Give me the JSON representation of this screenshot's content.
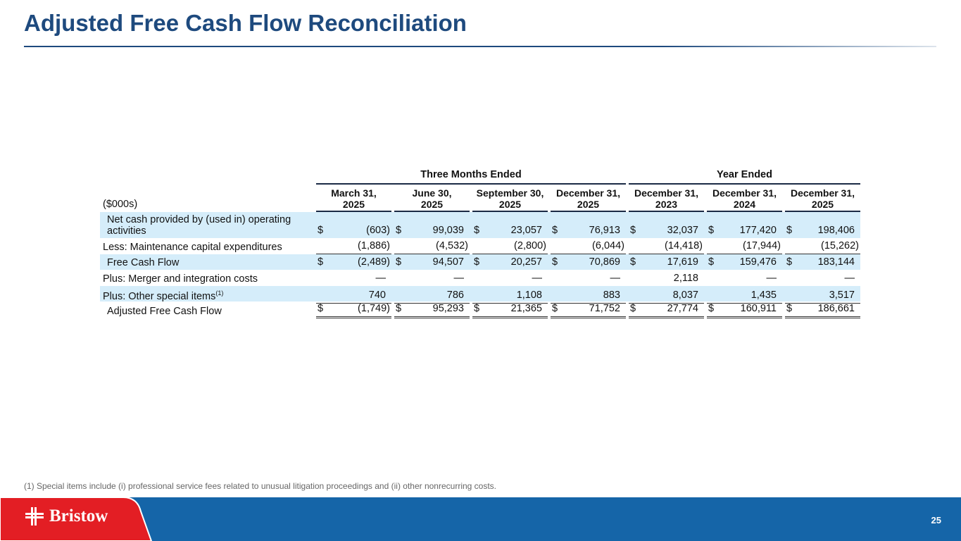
{
  "title": "Adjusted Free Cash Flow Reconciliation",
  "table": {
    "group_headers": [
      "Three Months Ended",
      "Year Ended"
    ],
    "unit_label": "($000s)",
    "columns": [
      [
        "March 31,",
        "2025"
      ],
      [
        "June 30,",
        "2025"
      ],
      [
        "September 30,",
        "2025"
      ],
      [
        "December 31,",
        "2025"
      ],
      [
        "December 31,",
        "2023"
      ],
      [
        "December 31,",
        "2024"
      ],
      [
        "December 31,",
        "2025"
      ]
    ],
    "rows": [
      {
        "label": "Net cash provided by (used in) operating activities",
        "dollar": true,
        "values": [
          "(603)",
          "99,039",
          "23,057",
          "76,913",
          "32,037",
          "177,420",
          "198,406"
        ]
      },
      {
        "label": "Less: Maintenance capital expenditures",
        "dollar": false,
        "values": [
          "(1,886)",
          "(4,532)",
          "(2,800)",
          "(6,044)",
          "(14,418)",
          "(17,944)",
          "(15,262)"
        ]
      },
      {
        "label": "Free Cash Flow",
        "dollar": true,
        "values": [
          "(2,489)",
          "94,507",
          "20,257",
          "70,869",
          "17,619",
          "159,476",
          "183,144"
        ]
      },
      {
        "label": "Plus: Merger and integration costs",
        "dollar": false,
        "values": [
          "—",
          "—",
          "—",
          "—",
          "2,118",
          "—",
          "—"
        ]
      },
      {
        "label": "Plus: Other special items",
        "sup": "(1)",
        "dollar": false,
        "values": [
          "740",
          "786",
          "1,108",
          "883",
          "8,037",
          "1,435",
          "3,517"
        ]
      },
      {
        "label": "Adjusted Free Cash Flow",
        "dollar": true,
        "values": [
          "(1,749)",
          "95,293",
          "21,365",
          "71,752",
          "27,774",
          "160,911",
          "186,661"
        ]
      }
    ],
    "currency_symbol": "$"
  },
  "footnote": "(1)   Special items include (i) professional service fees related to unusual litigation proceedings and (ii) other nonrecurring costs.",
  "logo_text": "Bristow",
  "page_number": "25",
  "colors": {
    "title": "#1e4a7e",
    "row_highlight": "#d5edfa",
    "footer_blue": "#1565a8",
    "brand_red": "#e31e24"
  }
}
